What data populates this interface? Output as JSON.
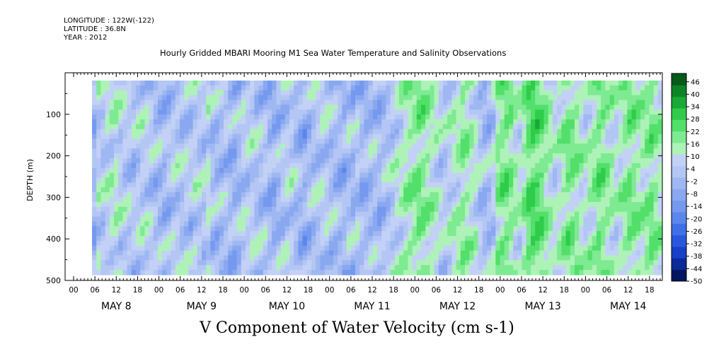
{
  "header": {
    "longitude_label": "LONGITUDE :",
    "longitude": "122W(-122)",
    "latitude_label": "LATITUDE :",
    "latitude": "36.8N",
    "year_label": "YEAR :",
    "year": "2012"
  },
  "chart_data": {
    "type": "heatmap",
    "title": "Hourly Gridded MBARI Mooring M1 Sea Water Temperature and Salinity Observations",
    "xlabel": "V Component of Water Velocity (cm s-1)",
    "ylabel": "DEPTH (m)",
    "ylim": [
      500,
      0
    ],
    "y_ticks": [
      100,
      200,
      300,
      400,
      500
    ],
    "x_hour_ticks": [
      "00",
      "06",
      "12",
      "18",
      "00",
      "06",
      "12",
      "18",
      "00",
      "06",
      "12",
      "18",
      "00",
      "06",
      "12",
      "18",
      "00",
      "06",
      "12",
      "18",
      "00",
      "06",
      "12",
      "18",
      "00",
      "06",
      "12",
      "18"
    ],
    "x_day_labels": [
      "MAY  8",
      "MAY  9",
      "MAY 10",
      "MAY 11",
      "MAY 12",
      "MAY 13",
      "MAY 14"
    ],
    "colorbar": {
      "ticks": [
        "46",
        "40",
        "34",
        "28",
        "22",
        "16",
        "10",
        "4",
        "-2",
        "-8",
        "-14",
        "-20",
        "-26",
        "-32",
        "-38",
        "-44",
        "-50"
      ],
      "range": [
        -50,
        50
      ],
      "colors": [
        "#001560",
        "#0c2a98",
        "#1840c8",
        "#2a58dc",
        "#4070e8",
        "#5b87ec",
        "#7499ee",
        "#8aa8f0",
        "#9fb7f2",
        "#b3c6f4",
        "#c3d1f6",
        "#aef2b8",
        "#7eea92",
        "#52df6a",
        "#2fcc4a",
        "#1aa836",
        "#0e8428",
        "#065a1a"
      ]
    },
    "column_pattern": [
      0.1,
      0.6,
      0.5,
      0.7,
      0.8,
      0.9,
      0.6,
      0.5,
      0.4,
      0.35,
      0.5,
      0.6,
      0.55,
      0.4,
      0.25,
      0.2,
      0.15,
      0.3,
      0.45,
      0.5,
      0.4,
      0.5,
      0.35,
      0.6,
      0.5,
      0.45,
      0.7,
      0.3,
      0.2,
      0.25,
      0.3,
      0.15,
      0.1,
      0.2,
      0.5,
      0.45,
      0.6,
      0.4,
      0.35,
      0.3,
      0.1,
      0.05,
      0.2,
      0.35,
      0.5,
      0.55,
      0.3,
      0.1,
      0.0,
      0.2,
      0.35,
      0.4,
      0.5,
      0.45,
      0.3,
      0.2,
      0.1,
      0.05,
      0.3,
      0.2,
      0.35,
      0.1,
      0.1,
      0.2,
      0.25,
      0.15,
      0.3,
      0.45,
      0.55,
      0.7,
      0.85,
      1.1,
      1.2,
      1.3,
      1.5,
      1.4,
      1.2,
      1.0,
      0.85,
      0.6,
      0.5,
      0.7,
      0.9,
      1.0,
      1.3,
      1.2,
      1.0,
      0.8,
      0.4,
      0.2,
      0.25,
      0.5,
      1.3,
      1.5,
      1.6,
      1.4,
      1.0,
      0.8,
      1.2,
      1.7,
      1.9,
      1.8,
      1.6,
      1.3,
      1.0,
      0.7,
      0.9,
      1.2,
      1.5,
      1.4,
      1.3,
      1.0,
      0.8,
      1.0,
      1.2,
      1.6,
      1.5,
      1.2,
      1.0,
      0.8,
      1.0,
      1.3,
      1.5,
      1.4,
      1.2,
      1.1,
      1.3,
      1.5,
      1.3,
      1.1
    ]
  }
}
